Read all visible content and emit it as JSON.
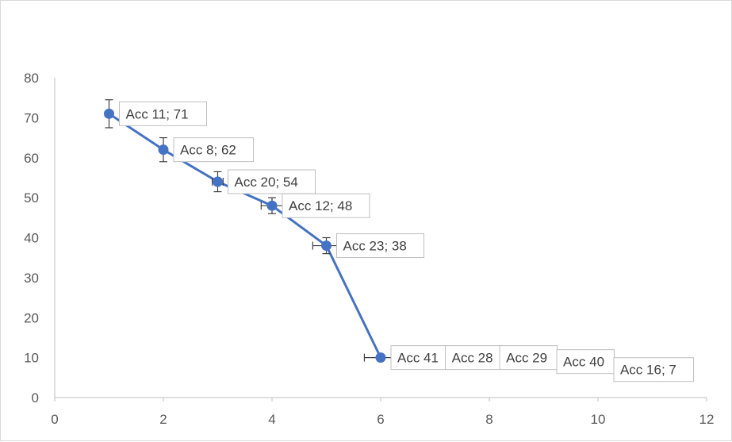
{
  "chart_data": {
    "type": "scatter",
    "title": "",
    "xlabel": "",
    "ylabel": "",
    "xlim": [
      0,
      12
    ],
    "ylim": [
      0,
      80
    ],
    "x_ticks": [
      0,
      2,
      4,
      6,
      8,
      10,
      12
    ],
    "y_ticks": [
      0,
      10,
      20,
      30,
      40,
      50,
      60,
      70,
      80
    ],
    "x_tick_labels": [
      "0",
      "2",
      "4",
      "6",
      "8",
      "10",
      "12"
    ],
    "y_tick_labels": [
      "0",
      "10",
      "20",
      "30",
      "40",
      "50",
      "60",
      "70",
      "80"
    ],
    "grid": false,
    "series": [
      {
        "color": "#4472c4",
        "points": [
          {
            "x": 1,
            "y": 71,
            "label": "Acc 11; 71",
            "yerr": 3.5,
            "xerr": 0
          },
          {
            "x": 2,
            "y": 62,
            "label": "Acc 8; 62",
            "yerr": 3,
            "xerr": 0
          },
          {
            "x": 3,
            "y": 54,
            "label": "Acc 20; 54",
            "yerr": 2.5,
            "xerr": 0.1
          },
          {
            "x": 4,
            "y": 48,
            "label": "Acc 12; 48",
            "yerr": 2,
            "xerr": 0.2
          },
          {
            "x": 5,
            "y": 38,
            "label": "Acc 23; 38",
            "yerr": 2,
            "xerr": 0.25
          },
          {
            "x": 6,
            "y": 10,
            "label": "Acc 41",
            "yerr": 0,
            "xerr": 0.3
          }
        ]
      }
    ],
    "overflow_labels": [
      {
        "label": "Acc 28",
        "x": 7.25,
        "y": 10
      },
      {
        "label": "Acc 29",
        "x": 8.25,
        "y": 10
      },
      {
        "label": "Acc 40",
        "x": 9.3,
        "y": 9
      },
      {
        "label": "Acc 16; 7",
        "x": 10.35,
        "y": 7
      }
    ]
  }
}
